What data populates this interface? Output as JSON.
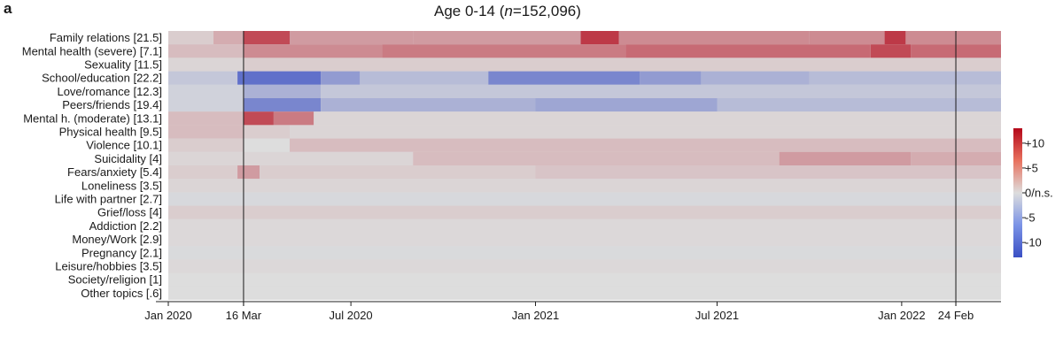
{
  "panel_letter": "a",
  "chart_data": {
    "type": "heatmap",
    "title_prefix": "Age 0-14 (",
    "title_n_symbol": "n",
    "title_n_value": "=152,096)",
    "rows": [
      "Family relations [21.5]",
      "Mental health (severe) [7.1]",
      "Sexuality [11.5]",
      "School/education [22.2]",
      "Love/romance [12.3]",
      "Peers/friends [19.4]",
      "Mental h. (moderate) [13.1]",
      "Physical health [9.5]",
      "Violence [10.1]",
      "Suicidality [4]",
      "Fears/anxiety [5.4]",
      "Loneliness [3.5]",
      "Life with partner [2.7]",
      "Grief/loss [4]",
      "Addiction [2.2]",
      "Money/Work [2.9]",
      "Pregnancy [2.1]",
      "Leisure/hobbies [3.5]",
      "Society/religion [1]",
      "Other topics [.6]"
    ],
    "x_start": "2020-01-01",
    "x_end": "2022-04-10",
    "x_ticks": [
      {
        "date": "2020-01-01",
        "label": "Jan 2020"
      },
      {
        "date": "2020-03-16",
        "label": "16 Mar"
      },
      {
        "date": "2020-07-01",
        "label": "Jul 2020"
      },
      {
        "date": "2021-01-01",
        "label": "Jan 2021"
      },
      {
        "date": "2021-07-01",
        "label": "Jul 2021"
      },
      {
        "date": "2022-01-01",
        "label": "Jan 2022"
      },
      {
        "date": "2022-02-24",
        "label": "24 Feb"
      }
    ],
    "event_lines": [
      "2020-03-16",
      "2022-02-24"
    ],
    "color_scale": {
      "min": -13,
      "max": 13,
      "neg_color": "#3a4fc4",
      "neutral_color": "#dddddd",
      "pos_color": "#b4081a",
      "ticks": [
        {
          "value": 10,
          "label": "+10"
        },
        {
          "value": 5,
          "label": "+5"
        },
        {
          "value": 0,
          "label": "0/n.s."
        },
        {
          "value": -5,
          "label": "-5"
        },
        {
          "value": -10,
          "label": "-10"
        }
      ]
    },
    "row_profiles": [
      [
        {
          "from": "2020-01-01",
          "to": "2020-02-15",
          "value": 1
        },
        {
          "from": "2020-02-15",
          "to": "2020-03-16",
          "value": 3
        },
        {
          "from": "2020-03-16",
          "to": "2020-05-01",
          "value": 9
        },
        {
          "from": "2020-05-01",
          "to": "2020-09-01",
          "value": 4
        },
        {
          "from": "2020-09-01",
          "to": "2021-02-15",
          "value": 4
        },
        {
          "from": "2021-02-15",
          "to": "2021-03-25",
          "value": 10
        },
        {
          "from": "2021-03-25",
          "to": "2021-10-01",
          "value": 5
        },
        {
          "from": "2021-10-01",
          "to": "2021-12-15",
          "value": 5
        },
        {
          "from": "2021-12-15",
          "to": "2022-01-05",
          "value": 10
        },
        {
          "from": "2022-01-05",
          "to": "2022-04-10",
          "value": 5
        }
      ],
      [
        {
          "from": "2020-01-01",
          "to": "2020-03-16",
          "value": 2
        },
        {
          "from": "2020-03-16",
          "to": "2020-08-01",
          "value": 5
        },
        {
          "from": "2020-08-01",
          "to": "2021-04-01",
          "value": 6
        },
        {
          "from": "2021-04-01",
          "to": "2021-12-01",
          "value": 7
        },
        {
          "from": "2021-12-01",
          "to": "2022-01-10",
          "value": 9
        },
        {
          "from": "2022-01-10",
          "to": "2022-04-10",
          "value": 7
        }
      ],
      [
        {
          "from": "2020-01-01",
          "to": "2020-03-16",
          "value": 0.5
        },
        {
          "from": "2020-03-16",
          "to": "2022-04-10",
          "value": 1
        }
      ],
      [
        {
          "from": "2020-01-01",
          "to": "2020-03-10",
          "value": -2
        },
        {
          "from": "2020-03-10",
          "to": "2020-06-01",
          "value": -10
        },
        {
          "from": "2020-06-01",
          "to": "2020-07-10",
          "value": -6
        },
        {
          "from": "2020-07-10",
          "to": "2020-11-15",
          "value": -3
        },
        {
          "from": "2020-11-15",
          "to": "2021-04-15",
          "value": -8
        },
        {
          "from": "2021-04-15",
          "to": "2021-06-15",
          "value": -6
        },
        {
          "from": "2021-06-15",
          "to": "2021-10-01",
          "value": -4
        },
        {
          "from": "2021-10-01",
          "to": "2022-04-10",
          "value": -3
        }
      ],
      [
        {
          "from": "2020-01-01",
          "to": "2020-03-16",
          "value": -1
        },
        {
          "from": "2020-03-16",
          "to": "2020-06-01",
          "value": -4
        },
        {
          "from": "2020-06-01",
          "to": "2022-04-10",
          "value": -2
        }
      ],
      [
        {
          "from": "2020-01-01",
          "to": "2020-03-16",
          "value": -1
        },
        {
          "from": "2020-03-16",
          "to": "2020-06-01",
          "value": -8
        },
        {
          "from": "2020-06-01",
          "to": "2021-01-01",
          "value": -4
        },
        {
          "from": "2021-01-01",
          "to": "2021-07-01",
          "value": -5
        },
        {
          "from": "2021-07-01",
          "to": "2022-04-10",
          "value": -3
        }
      ],
      [
        {
          "from": "2020-01-01",
          "to": "2020-03-16",
          "value": 2
        },
        {
          "from": "2020-03-16",
          "to": "2020-04-15",
          "value": 9
        },
        {
          "from": "2020-04-15",
          "to": "2020-05-25",
          "value": 6
        },
        {
          "from": "2020-05-25",
          "to": "2022-04-10",
          "value": 0.5
        }
      ],
      [
        {
          "from": "2020-01-01",
          "to": "2020-03-16",
          "value": 2
        },
        {
          "from": "2020-03-16",
          "to": "2020-05-01",
          "value": 1
        },
        {
          "from": "2020-05-01",
          "to": "2022-04-10",
          "value": 0.5
        }
      ],
      [
        {
          "from": "2020-01-01",
          "to": "2020-03-16",
          "value": 1
        },
        {
          "from": "2020-03-16",
          "to": "2020-05-01",
          "value": 0
        },
        {
          "from": "2020-05-01",
          "to": "2022-04-10",
          "value": 2
        }
      ],
      [
        {
          "from": "2020-01-01",
          "to": "2020-09-01",
          "value": 0.5
        },
        {
          "from": "2020-09-01",
          "to": "2021-09-01",
          "value": 2
        },
        {
          "from": "2021-09-01",
          "to": "2022-01-10",
          "value": 4
        },
        {
          "from": "2022-01-10",
          "to": "2022-04-10",
          "value": 3
        }
      ],
      [
        {
          "from": "2020-01-01",
          "to": "2020-03-10",
          "value": 1
        },
        {
          "from": "2020-03-10",
          "to": "2020-04-01",
          "value": 4
        },
        {
          "from": "2020-04-01",
          "to": "2021-01-01",
          "value": 1
        },
        {
          "from": "2021-01-01",
          "to": "2022-04-10",
          "value": 1.5
        }
      ],
      [
        {
          "from": "2020-01-01",
          "to": "2022-04-10",
          "value": 0.5
        }
      ],
      [
        {
          "from": "2020-01-01",
          "to": "2022-04-10",
          "value": -0.5
        }
      ],
      [
        {
          "from": "2020-01-01",
          "to": "2022-04-10",
          "value": 1
        }
      ],
      [
        {
          "from": "2020-01-01",
          "to": "2022-04-10",
          "value": 0.3
        }
      ],
      [
        {
          "from": "2020-01-01",
          "to": "2022-04-10",
          "value": 0.3
        }
      ],
      [
        {
          "from": "2020-01-01",
          "to": "2022-04-10",
          "value": -0.3
        }
      ],
      [
        {
          "from": "2020-01-01",
          "to": "2022-04-10",
          "value": 0.3
        }
      ],
      [
        {
          "from": "2020-01-01",
          "to": "2022-04-10",
          "value": 0
        }
      ],
      [
        {
          "from": "2020-01-01",
          "to": "2022-04-10",
          "value": 0
        }
      ]
    ]
  }
}
